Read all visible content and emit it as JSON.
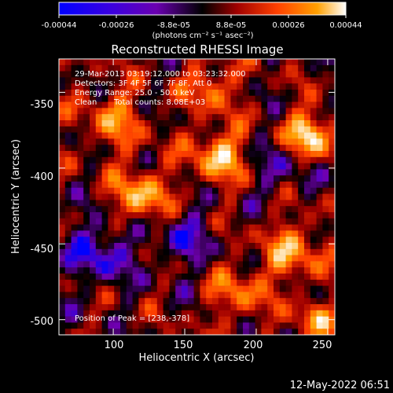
{
  "colorbar": {
    "ticks": [
      "-0.00044",
      "-0.00026",
      "-8.8e-05",
      "8.8e-05",
      "0.00026",
      "0.00044"
    ],
    "units": "(photons cm⁻² s⁻¹ asec⁻²)",
    "range": [
      -0.00044,
      0.00044
    ]
  },
  "footer": {
    "timestamp": "12-May-2022 06:51"
  },
  "chart_data": {
    "type": "heatmap",
    "title": "Reconstructed RHESSI Image",
    "xlabel": "Heliocentric X (arcsec)",
    "ylabel": "Heliocentric Y (arcsec)",
    "xlim": [
      62,
      255
    ],
    "ylim": [
      -510,
      -328
    ],
    "xticks": [
      100,
      150,
      200,
      250
    ],
    "yticks": [
      -350,
      -400,
      -450,
      -500
    ],
    "annotations": [
      "29-Mar-2013 03:19:12.000 to 03:23:32.000",
      "Detectors: 3F 4F 5F 6F 7F 8F, Att 0",
      "Energy Range: 25.0 - 50.0 keV",
      "Clean",
      "Total counts: 8.08E+03",
      "Position of Peak = [238,-378]"
    ],
    "peak": {
      "x": 238,
      "y": -378
    },
    "colormap": [
      "#0000ff",
      "#7000b0",
      "#000000",
      "#a00000",
      "#ff4000",
      "#ffa000",
      "#ffffff"
    ],
    "grid": false
  }
}
